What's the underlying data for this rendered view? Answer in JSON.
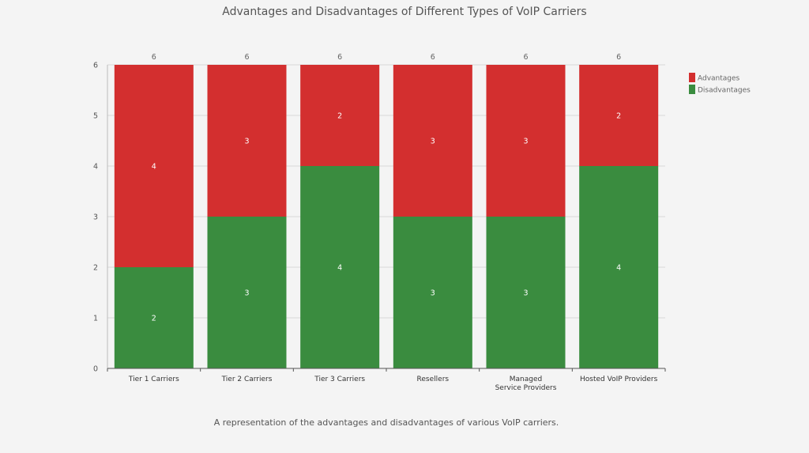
{
  "chart_data": {
    "type": "bar",
    "stacked": true,
    "title": "Advantages and Disadvantages of Different Types of VoIP Carriers",
    "caption": "A representation of the advantages and disadvantages of various VoIP carriers.",
    "categories": [
      "Tier 1 Carriers",
      "Tier 2 Carriers",
      "Tier 3 Carriers",
      "Resellers",
      "Managed Service Providers",
      "Hosted VoIP Providers"
    ],
    "series": [
      {
        "name": "Disadvantages",
        "values": [
          2,
          3,
          4,
          3,
          3,
          4
        ],
        "color": "#3a8c3f"
      },
      {
        "name": "Advantages",
        "values": [
          4,
          3,
          2,
          3,
          3,
          2
        ],
        "color": "#d32f2f"
      }
    ],
    "totals": [
      6,
      6,
      6,
      6,
      6,
      6
    ],
    "legend": [
      {
        "name": "Advantages",
        "color": "#d32f2f"
      },
      {
        "name": "Disadvantages",
        "color": "#3a8c3f"
      }
    ],
    "ylim": [
      0,
      6
    ],
    "yticks": [
      0,
      1,
      2,
      3,
      4,
      5,
      6
    ],
    "grid": true,
    "legend_position": "top-right",
    "xlabel": "",
    "ylabel": ""
  }
}
